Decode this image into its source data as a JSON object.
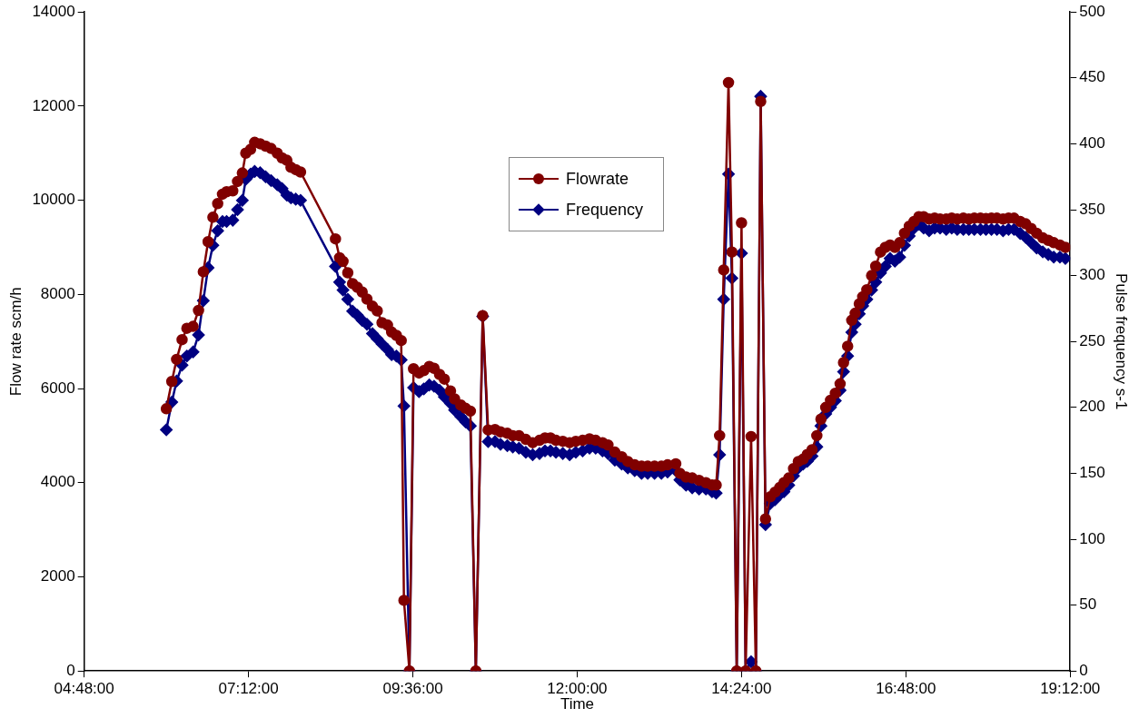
{
  "chart_data": {
    "type": "line",
    "xlabel": "Time",
    "ylabel": "Flow rate scm/h",
    "y2label": "Pulse frequency s-1",
    "x": [
      6.0,
      6.08,
      6.15,
      6.23,
      6.3,
      6.39,
      6.47,
      6.54,
      6.61,
      6.68,
      6.75,
      6.82,
      6.88,
      6.97,
      7.04,
      7.11,
      7.16,
      7.23,
      7.29,
      7.37,
      7.45,
      7.53,
      7.62,
      7.69,
      7.76,
      7.82,
      7.89,
      7.96,
      8.47,
      8.53,
      8.58,
      8.65,
      8.72,
      8.79,
      8.86,
      8.93,
      9.01,
      9.08,
      9.15,
      9.23,
      9.29,
      9.36,
      9.43,
      9.47,
      9.55,
      9.61,
      9.69,
      9.76,
      9.84,
      9.91,
      9.99,
      10.06,
      10.15,
      10.21,
      10.3,
      10.37,
      10.44,
      10.52,
      10.62,
      10.7,
      10.8,
      10.88,
      10.98,
      11.06,
      11.15,
      11.25,
      11.35,
      11.45,
      11.53,
      11.61,
      11.69,
      11.79,
      11.89,
      11.98,
      12.08,
      12.18,
      12.27,
      12.37,
      12.45,
      12.55,
      12.65,
      12.74,
      12.84,
      12.94,
      13.03,
      13.13,
      13.23,
      13.32,
      13.44,
      13.5,
      13.59,
      13.68,
      13.78,
      13.88,
      13.97,
      14.03,
      14.08,
      14.14,
      14.21,
      14.26,
      14.33,
      14.4,
      14.46,
      14.54,
      14.61,
      14.68,
      14.75,
      14.82,
      14.89,
      14.96,
      15.02,
      15.09,
      15.16,
      15.23,
      15.3,
      15.36,
      15.43,
      15.5,
      15.56,
      15.63,
      15.7,
      15.77,
      15.84,
      15.89,
      15.95,
      16.01,
      16.06,
      16.12,
      16.17,
      16.23,
      16.3,
      16.36,
      16.43,
      16.5,
      16.57,
      16.64,
      16.71,
      16.78,
      16.85,
      16.92,
      16.99,
      17.06,
      17.14,
      17.22,
      17.3,
      17.39,
      17.47,
      17.55,
      17.64,
      17.72,
      17.8,
      17.89,
      17.97,
      18.05,
      18.13,
      18.22,
      18.3,
      18.38,
      18.47,
      18.55,
      18.63,
      18.71,
      18.8,
      18.88,
      18.96,
      19.05,
      19.13
    ],
    "series": [
      {
        "name": "Flowrate",
        "color": "#800000",
        "marker": "circle",
        "values": [
          5570,
          6150,
          6620,
          7040,
          7280,
          7320,
          7660,
          8480,
          9120,
          9640,
          9930,
          10130,
          10180,
          10200,
          10400,
          10580,
          11000,
          11080,
          11230,
          11200,
          11150,
          11100,
          11000,
          10900,
          10850,
          10700,
          10650,
          10600,
          9180,
          8780,
          8700,
          8460,
          8230,
          8150,
          8050,
          7900,
          7750,
          7650,
          7400,
          7350,
          7200,
          7130,
          7020,
          1500,
          0,
          6420,
          6330,
          6380,
          6470,
          6430,
          6300,
          6200,
          5950,
          5780,
          5650,
          5580,
          5520,
          0,
          7550,
          5120,
          5130,
          5080,
          5050,
          5000,
          5000,
          4920,
          4850,
          4900,
          4950,
          4950,
          4900,
          4880,
          4850,
          4880,
          4900,
          4930,
          4900,
          4850,
          4800,
          4650,
          4550,
          4450,
          4380,
          4350,
          4350,
          4350,
          4350,
          4380,
          4400,
          4200,
          4120,
          4100,
          4050,
          4000,
          3950,
          3950,
          5000,
          8520,
          12500,
          8900,
          0,
          9520,
          0,
          4980,
          0,
          12100,
          3230,
          3700,
          3800,
          3900,
          4000,
          4100,
          4300,
          4450,
          4500,
          4600,
          4700,
          5000,
          5350,
          5600,
          5750,
          5900,
          6100,
          6550,
          6900,
          7450,
          7600,
          7800,
          7950,
          8100,
          8400,
          8600,
          8900,
          9000,
          9050,
          9000,
          9100,
          9300,
          9450,
          9550,
          9650,
          9650,
          9600,
          9620,
          9600,
          9600,
          9620,
          9600,
          9620,
          9600,
          9620,
          9620,
          9610,
          9620,
          9620,
          9600,
          9620,
          9620,
          9550,
          9500,
          9400,
          9300,
          9200,
          9150,
          9100,
          9050,
          9000
        ]
      },
      {
        "name": "Frequency",
        "color": "#000080",
        "marker": "diamond",
        "axis": "y2",
        "values": [
          183,
          204,
          220,
          232,
          239,
          242,
          255,
          281,
          306,
          323,
          334,
          341,
          341,
          342,
          350,
          357,
          373,
          377,
          379,
          378,
          375,
          372,
          369,
          366,
          361,
          359,
          358,
          357,
          307,
          295,
          289,
          282,
          273,
          270,
          266,
          263,
          256,
          252,
          248,
          244,
          240,
          239,
          236,
          201,
          0,
          215,
          212,
          214,
          217,
          216,
          213,
          208,
          203,
          198,
          193,
          189,
          186,
          0,
          269,
          174,
          174,
          172,
          171,
          170,
          169,
          166,
          164,
          165,
          167,
          167,
          166,
          165,
          164,
          166,
          167,
          169,
          169,
          167,
          165,
          160,
          157,
          154,
          152,
          150,
          150,
          150,
          150,
          151,
          152,
          145,
          141,
          139,
          138,
          138,
          136,
          135,
          164,
          282,
          377,
          298,
          0,
          317,
          0,
          7,
          0,
          436,
          111,
          127,
          130,
          134,
          136,
          141,
          148,
          154,
          157,
          159,
          163,
          170,
          186,
          195,
          200,
          205,
          213,
          227,
          239,
          257,
          263,
          271,
          277,
          282,
          289,
          295,
          302,
          307,
          313,
          311,
          314,
          323,
          330,
          336,
          339,
          336,
          334,
          336,
          336,
          335,
          336,
          335,
          335,
          335,
          335,
          335,
          335,
          335,
          335,
          334,
          335,
          335,
          332,
          329,
          325,
          321,
          318,
          316,
          314,
          314,
          313
        ]
      }
    ],
    "xlim": [
      4.8,
      19.2
    ],
    "xticks": [
      {
        "value": 4.8,
        "label": "04:48:00"
      },
      {
        "value": 7.2,
        "label": "07:12:00"
      },
      {
        "value": 9.6,
        "label": "09:36:00"
      },
      {
        "value": 12,
        "label": "12:00:00"
      },
      {
        "value": 14.4,
        "label": "14:24:00"
      },
      {
        "value": 16.8,
        "label": "16:48:00"
      },
      {
        "value": 19.2,
        "label": "19:12:00"
      }
    ],
    "ylim": [
      0,
      14000
    ],
    "yticks": [
      0,
      2000,
      4000,
      6000,
      8000,
      10000,
      12000,
      14000
    ],
    "y2lim": [
      0,
      500
    ],
    "y2ticks": [
      0,
      50,
      100,
      150,
      200,
      250,
      300,
      350,
      400,
      450,
      500
    ],
    "grid": false,
    "legend": "top",
    "line_style": "solid"
  }
}
